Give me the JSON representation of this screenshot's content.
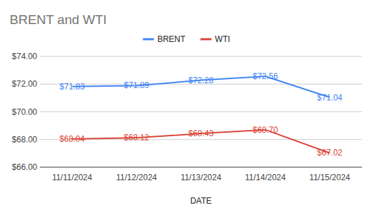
{
  "chart_data": {
    "type": "line",
    "title": "BRENT and WTI",
    "x_label": "DATE",
    "categories": [
      "11/11/2024",
      "11/12/2024",
      "11/13/2024",
      "11/14/2024",
      "11/15/2024"
    ],
    "series": [
      {
        "name": "BRENT",
        "color": "#4285f4",
        "values": [
          71.83,
          71.89,
          72.28,
          72.56,
          71.04
        ],
        "value_labels": [
          "$71.83",
          "$71.89",
          "$72.28",
          "$72.56",
          "$71.04"
        ]
      },
      {
        "name": "WTI",
        "color": "#db4437",
        "values": [
          68.04,
          68.12,
          68.43,
          68.7,
          67.02
        ],
        "value_labels": [
          "$68.04",
          "$68.12",
          "$68.43",
          "$68.70",
          "$67.02"
        ]
      }
    ],
    "ylim": [
      66,
      74
    ],
    "yticks": [
      {
        "value": 66,
        "label": "$66.00"
      },
      {
        "value": 68,
        "label": "$68.00"
      },
      {
        "value": 70,
        "label": "$70.00"
      },
      {
        "value": 72,
        "label": "$72.00"
      },
      {
        "value": 74,
        "label": "$74.00"
      }
    ],
    "grid": true,
    "legend": "top",
    "data_labels": true
  }
}
